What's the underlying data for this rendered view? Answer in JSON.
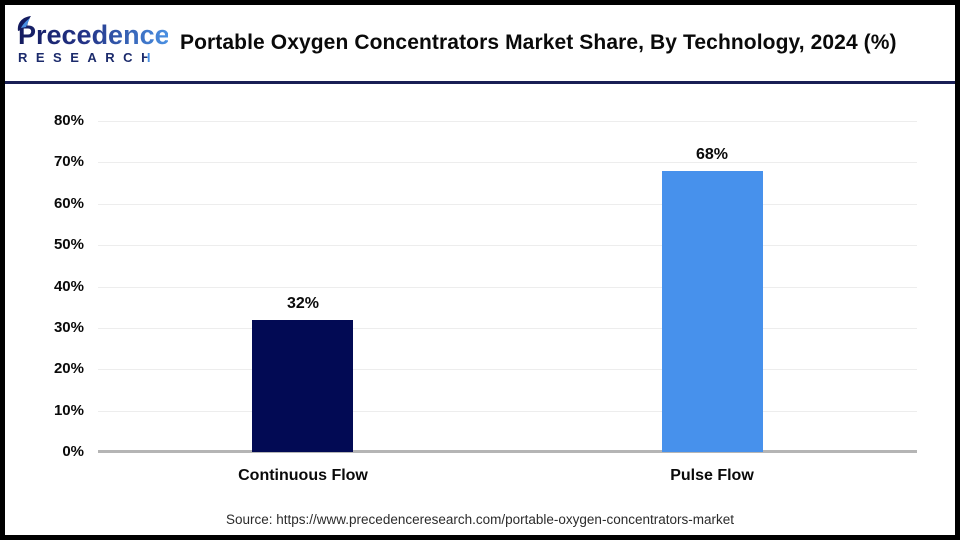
{
  "header": {
    "logo": {
      "name": "Precedence",
      "subname": "RESEARCH"
    },
    "title": "Portable Oxygen Concentrators Market Share, By Technology, 2024 (%)"
  },
  "chart_data": {
    "type": "bar",
    "title": "Portable Oxygen Concentrators Market Share, By Technology, 2024 (%)",
    "categories": [
      "Continuous Flow",
      "Pulse Flow"
    ],
    "values": [
      32,
      68
    ],
    "value_labels": [
      "32%",
      "68%"
    ],
    "bar_colors": [
      "#020a54",
      "#4791ec"
    ],
    "xlabel": "",
    "ylabel": "",
    "ylim": [
      0,
      80
    ],
    "ytick_step": 10,
    "yticks": [
      "0%",
      "10%",
      "20%",
      "30%",
      "40%",
      "50%",
      "60%",
      "70%",
      "80%"
    ],
    "grid": true,
    "legend": "none"
  },
  "footer": {
    "source": "Source: https://www.precedenceresearch.com/portable-oxygen-concentrators-market"
  }
}
